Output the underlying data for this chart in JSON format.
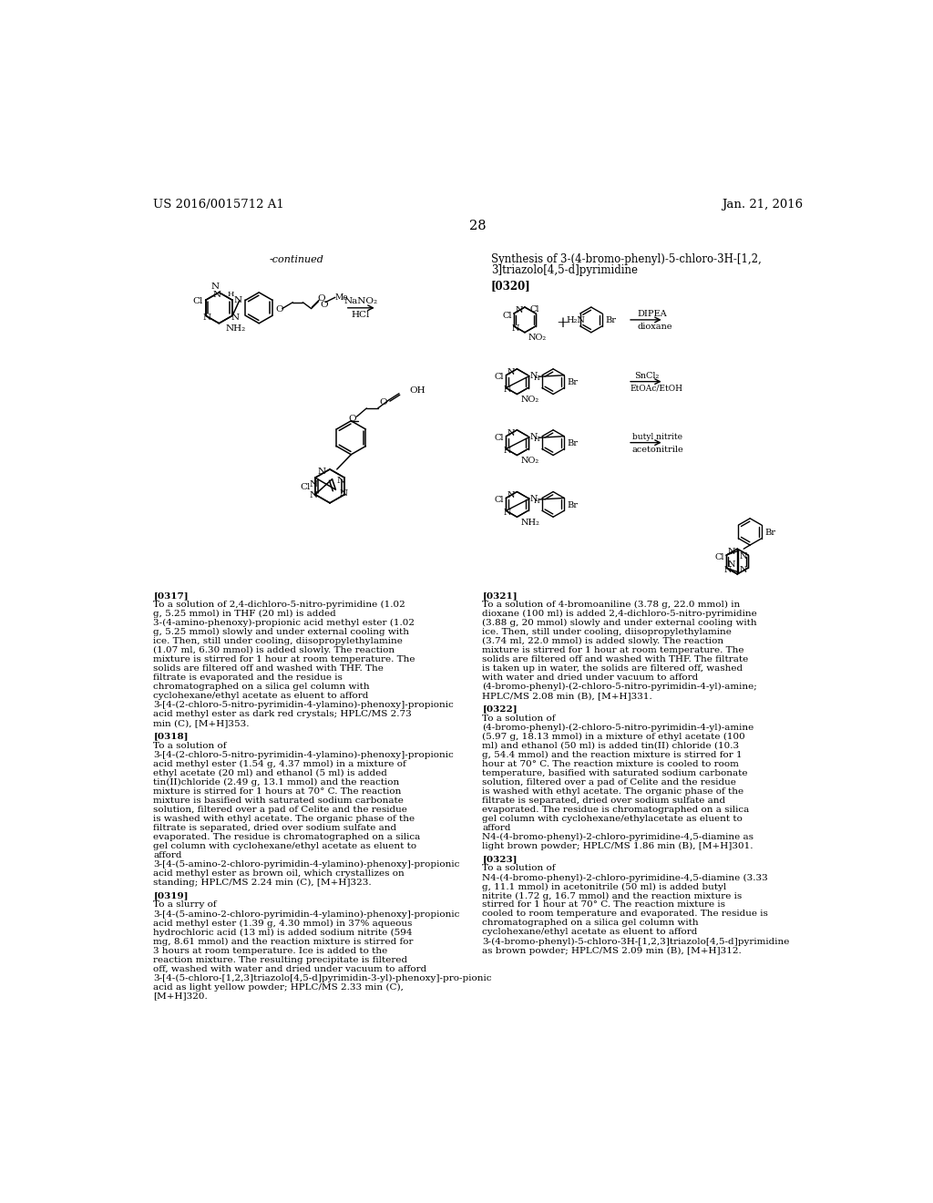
{
  "page_number": "28",
  "patent_left": "US 2016/0015712 A1",
  "patent_right": "Jan. 21, 2016",
  "continued_label": "-continued",
  "synthesis_title_line1": "Synthesis of 3-(4-bromo-phenyl)-5-chloro-3H-[1,2,",
  "synthesis_title_line2": "3]triazolo[4,5-d]pyrimidine",
  "para_0317_label": "[0317]",
  "para_0317_body": "To a solution of 2,4-dichloro-5-nitro-pyrimidine (1.02 g, 5.25 mmol) in THF (20 ml) is added 3-(4-amino-phenoxy)-propionic acid methyl ester (1.02 g, 5.25 mmol) slowly and under external cooling with ice. Then, still under cooling, diisopropylethylamine (1.07 ml, 6.30 mmol) is added slowly. The reaction mixture is stirred for 1 hour at room temperature. The solids are filtered off and washed with THF. The filtrate is evaporated and the residue is chromatographed on a silica gel column with cyclohexane/ethyl acetate as eluent to afford 3-[4-(2-chloro-5-nitro-pyrimidin-4-ylamino)-phenoxy]-propionic acid methyl ester as dark red crystals; HPLC/MS 2.73 min (C), [M+H]353.",
  "para_0318_label": "[0318]",
  "para_0318_body": "To a solution of 3-[4-(2-chloro-5-nitro-pyrimidin-4-ylamino)-phenoxy]-propionic acid methyl ester (1.54 g, 4.37 mmol) in a mixture of ethyl acetate (20 ml) and ethanol (5 ml) is added tin(II)chloride (2.49 g, 13.1 mmol) and the reaction mixture is stirred for 1 hours at 70° C. The reaction mixture is basified with saturated sodium carbonate solution, filtered over a pad of Celite and the residue is washed with ethyl acetate. The organic phase of the filtrate is separated, dried over sodium sulfate and evaporated. The residue is chromatographed on a silica gel column with cyclohexane/ethyl acetate as eluent to afford 3-[4-(5-amino-2-chloro-pyrimidin-4-ylamino)-phenoxy]-propionic acid methyl ester as brown oil, which crystallizes on standing; HPLC/MS 2.24 min (C), [M+H]323.",
  "para_0319_label": "[0319]",
  "para_0319_body": "To a slurry of 3-[4-(5-amino-2-chloro-pyrimidin-4-ylamino)-phenoxy]-propionic acid methyl ester (1.39 g, 4.30 mmol) in 37% aqueous hydrochloric acid (13 ml) is added sodium nitrite (594 mg, 8.61 mmol) and the reaction mixture is stirred for 3 hours at room temperature. Ice is added to the reaction mixture. The resulting precipitate is filtered off, washed with water and dried under vacuum to afford 3-[4-(5-chloro-[1,2,3]triazolo[4,5-d]pyrimidin-3-yl)-phenoxy]-pro-pionic acid as light yellow powder; HPLC/MS 2.33 min (C), [M+H]320.",
  "para_0321_label": "[0321]",
  "para_0321_body": "To a solution of 4-bromoaniline (3.78 g, 22.0 mmol) in dioxane (100 ml) is added 2,4-dichloro-5-nitro-pyrimidine (3.88 g, 20 mmol) slowly and under external cooling with ice. Then, still under cooling, diisopropylethylamine (3.74 ml, 22.0 mmol) is added slowly. The reaction mixture is stirred for 1 hour at room temperature. The solids are filtered off and washed with THF. The filtrate is taken up in water, the solids are filtered off, washed with water and dried under vacuum to afford (4-bromo-phenyl)-(2-chloro-5-nitro-pyrimidin-4-yl)-amine; HPLC/MS 2.08 min (B), [M+H]331.",
  "para_0322_label": "[0322]",
  "para_0322_body": "To a solution of (4-bromo-phenyl)-(2-chloro-5-nitro-pyrimidin-4-yl)-amine (5.97 g, 18.13 mmol) in a mixture of ethyl acetate (100 ml) and ethanol (50 ml) is added tin(II) chloride (10.3 g, 54.4 mmol) and the reaction mixture is stirred for 1 hour at 70° C. The reaction mixture is cooled to room temperature, basified with saturated sodium carbonate solution, filtered over a pad of Celite and the residue is washed with ethyl acetate. The organic phase of the filtrate is separated, dried over sodium sulfate and evaporated. The residue is chromatographed on a silica gel column with cyclohexane/ethylacetate as eluent to afford N4-(4-bromo-phenyl)-2-chloro-pyrimidine-4,5-diamine as light brown powder; HPLC/MS 1.86 min (B), [M+H]301.",
  "para_0323_label": "[0323]",
  "para_0323_body": "To a solution of N4-(4-bromo-phenyl)-2-chloro-pyrimidine-4,5-diamine (3.33 g, 11.1 mmol) in acetonitrile (50 ml) is added butyl nitrite (1.72 g, 16.7 mmol) and the reaction mixture is stirred for 1 hour at 70° C. The reaction mixture is cooled to room temperature and evaporated. The residue is chromatographed on a silica gel column with cyclohexane/ethyl acetate as eluent to afford 3-(4-bromo-phenyl)-5-chloro-3H-[1,2,3]triazolo[4,5-d]pyrimidine as brown powder; HPLC/MS 2.09 min (B), [M+H]312."
}
